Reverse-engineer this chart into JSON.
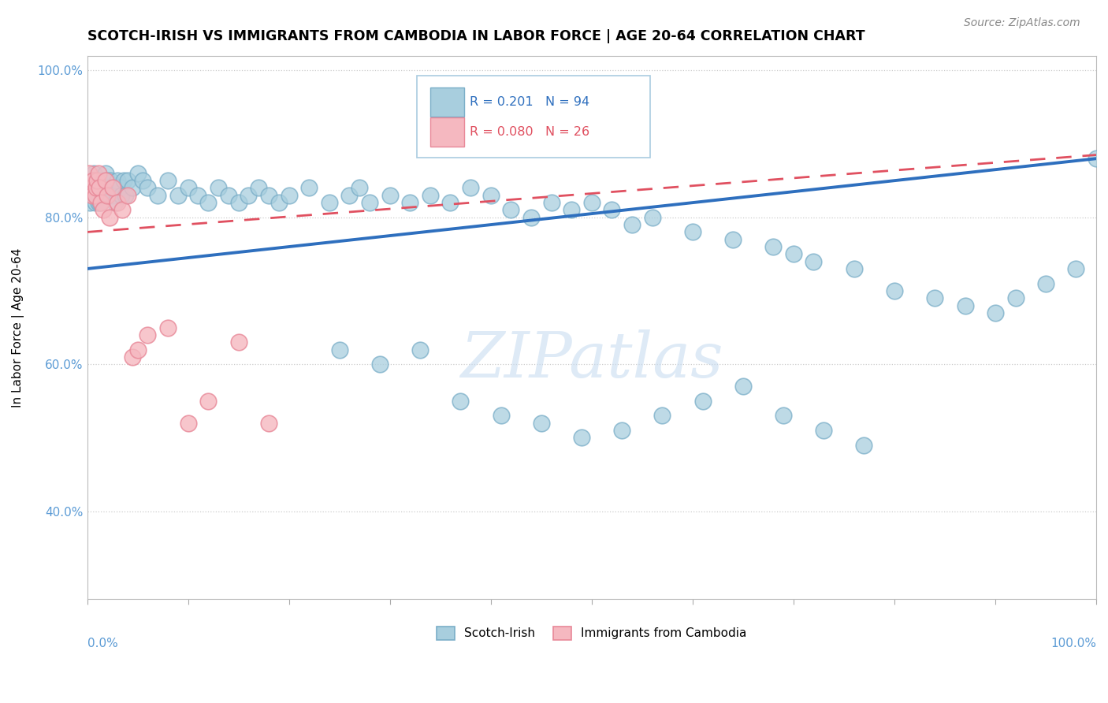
{
  "title": "SCOTCH-IRISH VS IMMIGRANTS FROM CAMBODIA IN LABOR FORCE | AGE 20-64 CORRELATION CHART",
  "source": "Source: ZipAtlas.com",
  "ylabel": "In Labor Force | Age 20-64",
  "legend_label1": "Scotch-Irish",
  "legend_label2": "Immigrants from Cambodia",
  "r1": 0.201,
  "n1": 94,
  "r2": 0.08,
  "n2": 26,
  "blue_color": "#A8CEDE",
  "blue_edge_color": "#7AAEC8",
  "pink_color": "#F5B8C0",
  "pink_edge_color": "#E88898",
  "blue_line_color": "#2E6FBE",
  "pink_line_color": "#E05060",
  "watermark_color": "#C8DCF0",
  "axis_color": "#5B9BD5",
  "background": "#FFFFFF",
  "blue_x": [
    0.3,
    0.5,
    0.5,
    0.6,
    0.7,
    0.8,
    0.9,
    1.0,
    1.0,
    1.1,
    1.2,
    1.3,
    1.5,
    1.6,
    1.7,
    1.8,
    2.0,
    2.1,
    2.2,
    2.3,
    2.5,
    2.6,
    2.8,
    3.0,
    3.2,
    3.4,
    3.6,
    3.8,
    4.0,
    4.5,
    5.0,
    5.5,
    6.0,
    7.0,
    8.0,
    9.0,
    10.0,
    11.0,
    12.0,
    13.0,
    14.0,
    15.0,
    16.0,
    17.0,
    18.0,
    19.0,
    20.0,
    22.0,
    24.0,
    26.0,
    27.0,
    28.0,
    30.0,
    32.0,
    34.0,
    36.0,
    38.0,
    40.0,
    42.0,
    44.0,
    46.0,
    48.0,
    50.0,
    52.0,
    54.0,
    56.0,
    60.0,
    64.0,
    68.0,
    70.0,
    72.0,
    76.0,
    80.0,
    84.0,
    87.0,
    90.0,
    92.0,
    95.0,
    98.0,
    100.0,
    25.0,
    29.0,
    33.0,
    37.0,
    41.0,
    45.0,
    49.0,
    53.0,
    57.0,
    61.0,
    65.0,
    69.0,
    73.0,
    77.0
  ],
  "blue_y": [
    82,
    85,
    84,
    83,
    86,
    82,
    83,
    85,
    84,
    82,
    83,
    82,
    85,
    84,
    83,
    86,
    85,
    84,
    83,
    85,
    84,
    83,
    82,
    85,
    84,
    83,
    85,
    83,
    85,
    84,
    86,
    85,
    84,
    83,
    85,
    83,
    84,
    83,
    82,
    84,
    83,
    82,
    83,
    84,
    83,
    82,
    83,
    84,
    82,
    83,
    84,
    82,
    83,
    82,
    83,
    82,
    84,
    83,
    81,
    80,
    82,
    81,
    82,
    81,
    79,
    80,
    78,
    77,
    76,
    75,
    74,
    73,
    70,
    69,
    68,
    67,
    69,
    71,
    73,
    88,
    62,
    60,
    62,
    55,
    53,
    52,
    50,
    51,
    53,
    55,
    57,
    53,
    51,
    49
  ],
  "pink_x": [
    0.2,
    0.4,
    0.5,
    0.6,
    0.8,
    0.9,
    1.0,
    1.1,
    1.2,
    1.4,
    1.6,
    1.8,
    2.0,
    2.2,
    2.5,
    3.0,
    3.5,
    4.0,
    4.5,
    5.0,
    6.0,
    8.0,
    10.0,
    12.0,
    15.0,
    18.0
  ],
  "pink_y": [
    86,
    84,
    83,
    85,
    83,
    84,
    85,
    86,
    84,
    82,
    81,
    85,
    83,
    80,
    84,
    82,
    81,
    83,
    61,
    62,
    64,
    65,
    52,
    55,
    63,
    52
  ],
  "blue_line_x0": 0.0,
  "blue_line_y0": 73.0,
  "blue_line_x1": 100.0,
  "blue_line_y1": 88.0,
  "pink_line_x0": 0.0,
  "pink_line_y0": 78.0,
  "pink_line_x1": 100.0,
  "pink_line_y1": 88.5,
  "xlim": [
    0,
    100
  ],
  "ylim_lo": 28,
  "ylim_hi": 102,
  "ytick_vals": [
    40,
    60,
    80,
    100
  ],
  "ytick_labels": [
    "40.0%",
    "60.0%",
    "80.0%",
    "100.0%"
  ]
}
